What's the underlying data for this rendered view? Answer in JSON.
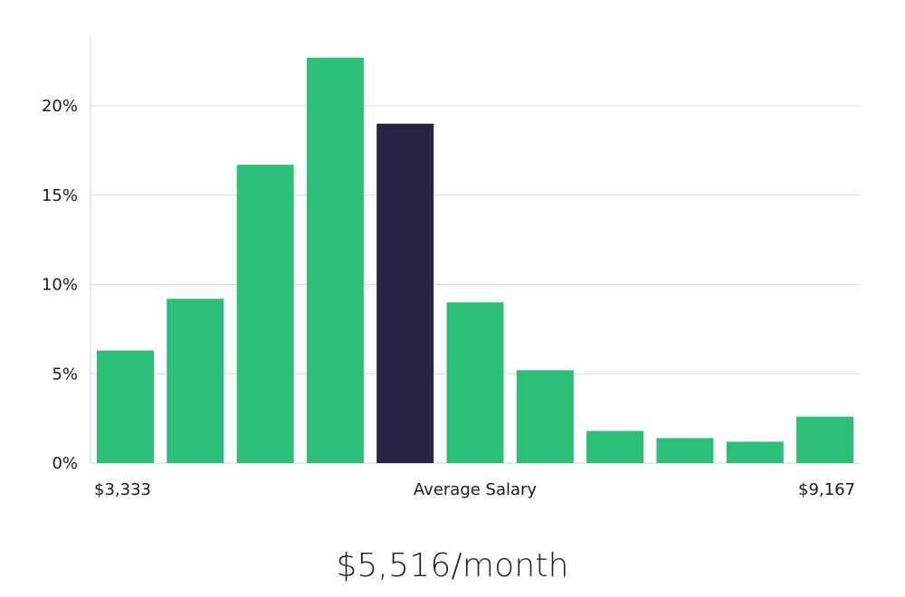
{
  "chart_data": {
    "type": "bar",
    "values": [
      6.3,
      9.2,
      16.7,
      22.7,
      19.0,
      9.0,
      5.2,
      1.8,
      1.4,
      1.2,
      2.6
    ],
    "highlight_index": 4,
    "ylim": [
      0,
      24
    ],
    "y_ticks": [
      {
        "value": 0,
        "label": "0%"
      },
      {
        "value": 5,
        "label": "5%"
      },
      {
        "value": 10,
        "label": "10%"
      },
      {
        "value": 15,
        "label": "15%"
      },
      {
        "value": 20,
        "label": "20%"
      }
    ],
    "x_labels": {
      "left": "$3,333",
      "center": "Average Salary",
      "right": "$9,167"
    },
    "grid": true,
    "colors": {
      "bar": "#2bbf78",
      "highlight": "#262443",
      "grid": "#dcdcdc",
      "axis": "#d0d0d0"
    }
  },
  "caption": "$5,516/month"
}
